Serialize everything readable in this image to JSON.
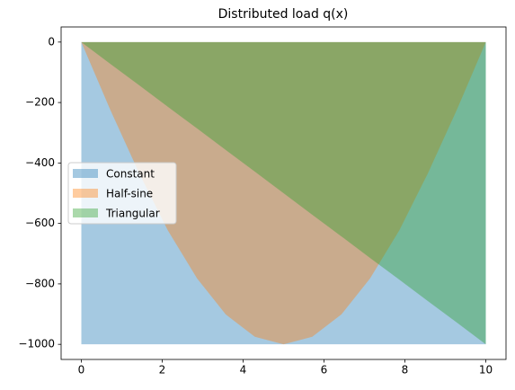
{
  "chart_data": {
    "type": "area",
    "title": "Distributed load q(x)",
    "x": [
      0,
      0.71,
      1.43,
      2.14,
      2.86,
      3.57,
      4.29,
      5,
      5.71,
      6.43,
      7.14,
      7.86,
      8.57,
      9.29,
      10
    ],
    "series": [
      {
        "name": "Constant",
        "color": "#1f77b4",
        "values": [
          -1000,
          -1000,
          -1000,
          -1000,
          -1000,
          -1000,
          -1000,
          -1000,
          -1000,
          -1000,
          -1000,
          -1000,
          -1000,
          -1000,
          -1000
        ]
      },
      {
        "name": "Half-sine",
        "color": "#ff7f0e",
        "values": [
          0,
          -222.5,
          -433.9,
          -623.5,
          -781.8,
          -901,
          -974.9,
          -1000,
          -974.9,
          -901,
          -781.8,
          -623.5,
          -433.9,
          -222.5,
          0
        ]
      },
      {
        "name": "Triangular",
        "color": "#2ca02c",
        "values": [
          0,
          -71.4,
          -142.9,
          -214.3,
          -285.7,
          -357.1,
          -428.6,
          -500,
          -571.4,
          -642.9,
          -714.3,
          -785.7,
          -857.1,
          -928.6,
          -1000
        ]
      }
    ],
    "xlim": [
      -0.5,
      10.5
    ],
    "ylim": [
      -1050,
      50
    ],
    "xticks": [
      0,
      2,
      4,
      6,
      8,
      10
    ],
    "yticks": [
      0,
      {
        "value": -200,
        "label": "−200"
      },
      {
        "value": -400,
        "label": "−400"
      },
      {
        "value": -600,
        "label": "−600"
      },
      {
        "value": -800,
        "label": "−800"
      },
      {
        "value": -1000,
        "label": "−1000"
      }
    ],
    "fill_opacity": 0.4,
    "legend": "center left"
  }
}
